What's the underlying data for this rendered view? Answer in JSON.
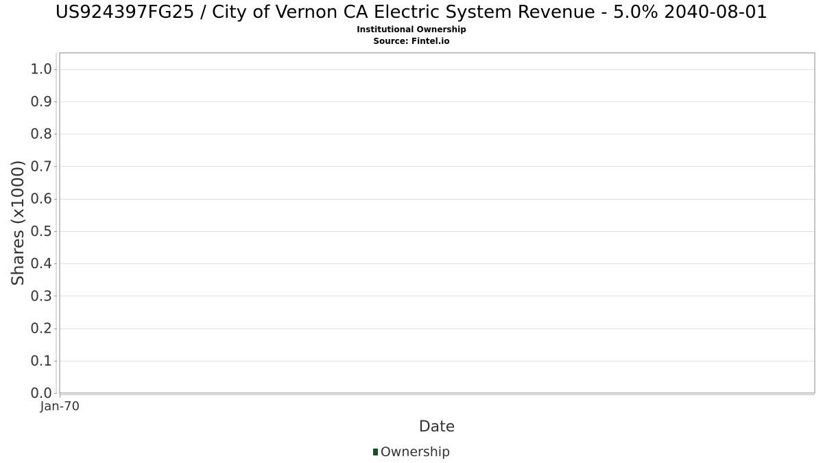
{
  "chart_data": {
    "type": "line",
    "title": "US924397FG25 / City of Vernon CA Electric System Revenue - 5.0% 2040-08-01",
    "subtitle": "Institutional Ownership",
    "source": "Source: Fintel.io",
    "xlabel": "Date",
    "ylabel": "Shares (x1000)",
    "x_tick_labels": [
      "Jan-70"
    ],
    "y_ticks": [
      0.0,
      0.1,
      0.2,
      0.3,
      0.4,
      0.5,
      0.6,
      0.7,
      0.8,
      0.9,
      1.0
    ],
    "y_tick_labels": [
      "0.0",
      "0.1",
      "0.2",
      "0.3",
      "0.4",
      "0.5",
      "0.6",
      "0.7",
      "0.8",
      "0.9",
      "1.0"
    ],
    "ylim": [
      0,
      1.05
    ],
    "grid": true,
    "legend_position": "bottom",
    "series": [
      {
        "name": "Ownership",
        "color": "#1b4d2b",
        "values": []
      }
    ]
  }
}
